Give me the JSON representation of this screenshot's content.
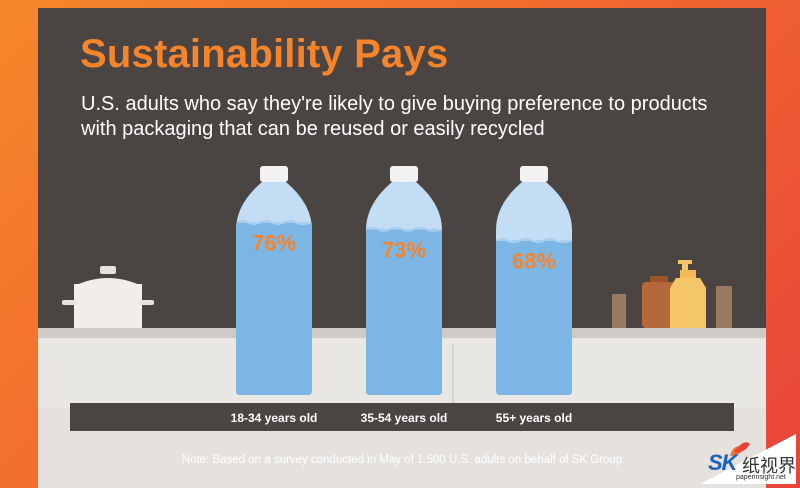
{
  "title": "Sustainability Pays",
  "subtitle": "U.S. adults who say they're likely to give buying preference to products with packaging that can be reused or easily recycled",
  "note": "Note: Based on a survey conducted in May of 1,500 U.S. adults on behalf of SK Group",
  "logo": {
    "mark": "SK",
    "cjk": "纸视界",
    "url": "paperinsight.net"
  },
  "colors": {
    "accent": "#f5842b",
    "panel": "#4a4442",
    "water": "#7cb6e4",
    "bottle_empty": "#c3def4",
    "cap": "#f2f2f2"
  },
  "chart_data": {
    "type": "bar",
    "categories": [
      "18-34 years old",
      "35-54 years old",
      "55+ years old"
    ],
    "values": [
      76,
      73,
      68
    ],
    "value_labels": [
      "76%",
      "73%",
      "68%"
    ],
    "unit": "%",
    "ylim": [
      0,
      100
    ],
    "title": "Sustainability Pays",
    "subtitle": "U.S. adults who say they're likely to give buying preference to products with packaging that can be reused or easily recycled",
    "note": "Note: Based on a survey conducted in May of 1,500 U.S. adults on behalf of SK Group",
    "grid": false,
    "legend": "none"
  }
}
